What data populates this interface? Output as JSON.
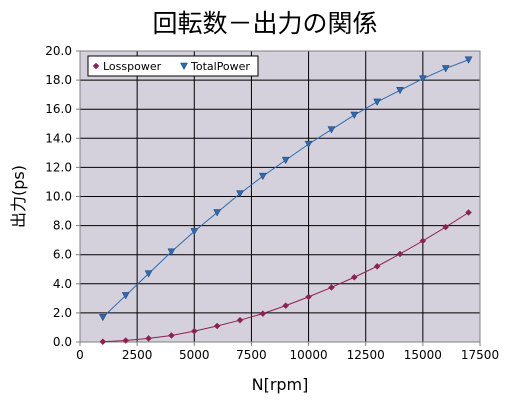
{
  "chart_data": {
    "type": "line",
    "title": "回転数－出力の関係",
    "xlabel": "N[rpm]",
    "ylabel": "出力(ps)",
    "xlim": [
      0,
      17500
    ],
    "ylim": [
      0,
      20
    ],
    "x_ticks": [
      "0",
      "2500",
      "5000",
      "7500",
      "10000",
      "12500",
      "15000",
      "17500"
    ],
    "y_ticks": [
      "0.0",
      "2.0",
      "4.0",
      "6.0",
      "8.0",
      "10.0",
      "12.0",
      "14.0",
      "16.0",
      "18.0",
      "20.0"
    ],
    "grid": true,
    "legend_position": "top-left",
    "series": [
      {
        "name": "Losspower",
        "color": "#8b2252",
        "marker": "diamond",
        "x": [
          1000,
          2000,
          3000,
          4000,
          5000,
          6000,
          7000,
          8000,
          9000,
          10000,
          11000,
          12000,
          13000,
          14000,
          15000,
          16000,
          17000
        ],
        "values": [
          0.02,
          0.1,
          0.25,
          0.45,
          0.75,
          1.1,
          1.5,
          1.95,
          2.5,
          3.1,
          3.75,
          4.45,
          5.2,
          6.05,
          6.95,
          7.9,
          8.9
        ]
      },
      {
        "name": "TotalPower",
        "color": "#2e6ab0",
        "marker": "triangle-down",
        "x": [
          1000,
          2000,
          3000,
          4000,
          5000,
          6000,
          7000,
          8000,
          9000,
          10000,
          11000,
          12000,
          13000,
          14000,
          15000,
          16000,
          17000
        ],
        "values": [
          1.7,
          3.2,
          4.7,
          6.2,
          7.6,
          8.9,
          10.2,
          11.4,
          12.5,
          13.6,
          14.6,
          15.6,
          16.5,
          17.3,
          18.1,
          18.8,
          19.4
        ]
      }
    ]
  }
}
